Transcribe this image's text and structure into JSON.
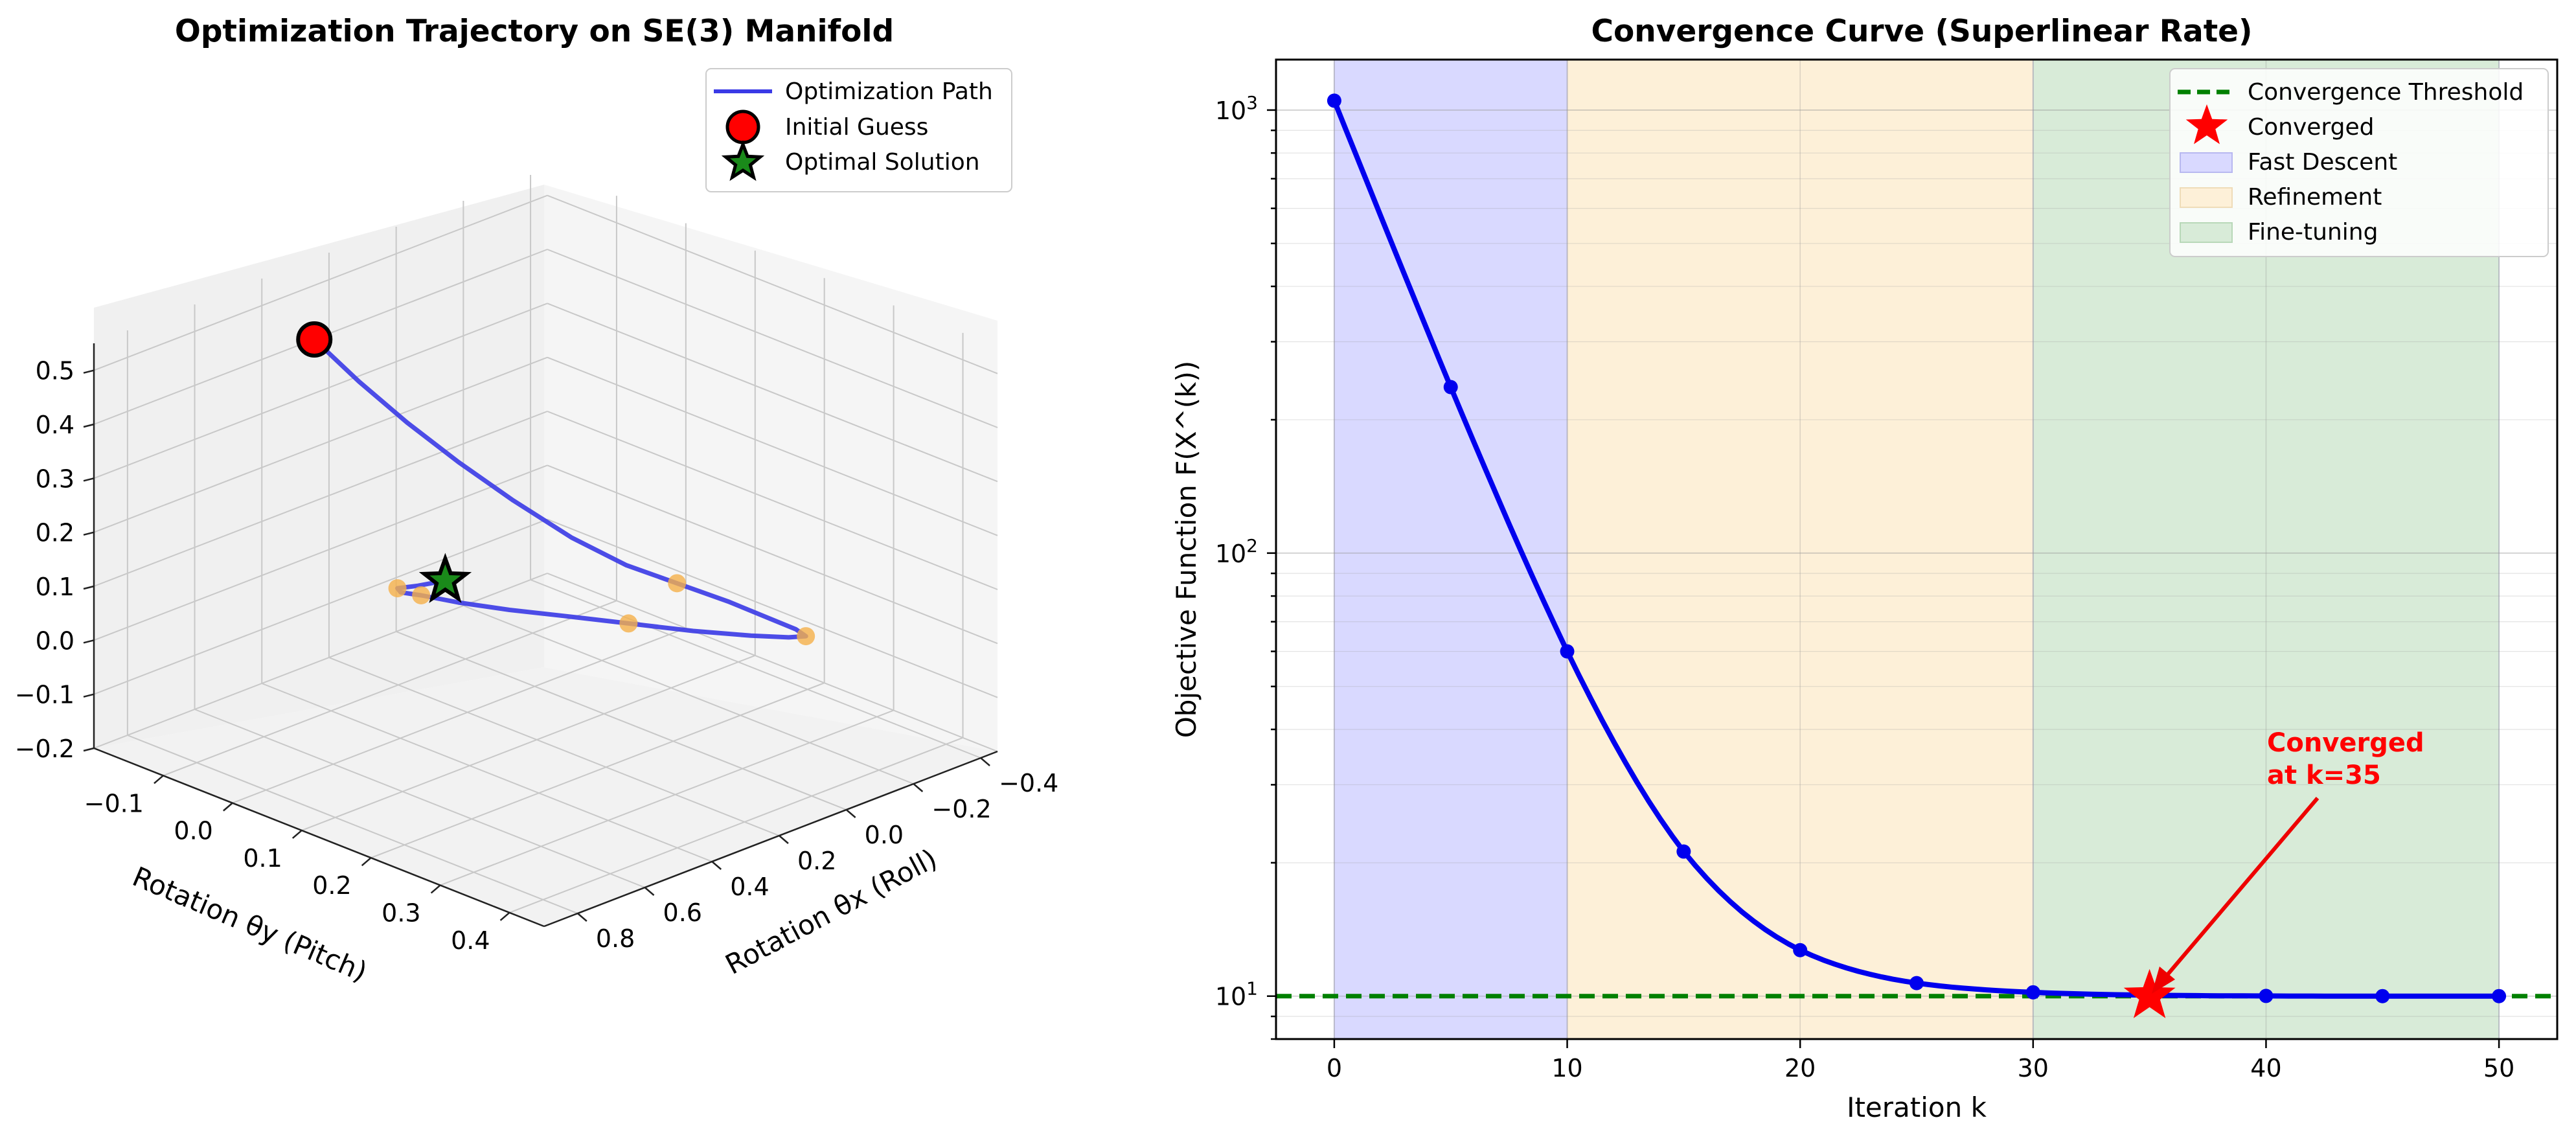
{
  "chart_data": [
    {
      "type": "line3d",
      "title": "Optimization Trajectory on SE(3) Manifold",
      "xlabel": "Rotation θx (Roll)",
      "ylabel": "Rotation θy (Pitch)",
      "zlabel": "",
      "xlim": [
        -0.45,
        0.9
      ],
      "ylim": [
        -0.2,
        0.45
      ],
      "zlim": [
        -0.2,
        0.55
      ],
      "x_ticks": [
        "0.8",
        "0.6",
        "0.4",
        "0.2",
        "0.0",
        "−0.2",
        "−0.4"
      ],
      "y_ticks": [
        "−0.1",
        "0.0",
        "0.1",
        "0.2",
        "0.3",
        "0.4"
      ],
      "z_ticks": [
        "−0.2",
        "−0.1",
        "0.0",
        "0.1",
        "0.2",
        "0.3",
        "0.4",
        "0.5"
      ],
      "grid": true,
      "legend": {
        "position": "top-right",
        "entries": [
          "Optimization Path",
          "Initial Guess",
          "Optimal Solution"
        ]
      },
      "colors": {
        "path": "#3a3ae6",
        "initial": "#ff0000",
        "optimal": "#1a8a1a",
        "samples": "#f5b04a"
      },
      "series": [
        {
          "name": "Optimization Path",
          "x": [
            0.45,
            0.42,
            0.38,
            0.33,
            0.27,
            0.2,
            0.12,
            0.03,
            -0.06,
            -0.14,
            -0.2,
            -0.23,
            -0.22,
            -0.17,
            -0.08,
            0.03,
            0.14,
            0.24,
            0.33,
            0.4,
            0.44,
            0.45,
            0.43,
            0.39
          ],
          "y": [
            -0.1,
            -0.05,
            0.0,
            0.05,
            0.1,
            0.15,
            0.19,
            0.22,
            0.25,
            0.27,
            0.28,
            0.28,
            0.26,
            0.23,
            0.19,
            0.15,
            0.11,
            0.08,
            0.05,
            0.03,
            0.02,
            0.02,
            0.04,
            0.06
          ],
          "z": [
            0.5,
            0.44,
            0.38,
            0.32,
            0.26,
            0.2,
            0.15,
            0.11,
            0.07,
            0.03,
            0.0,
            -0.02,
            -0.03,
            -0.03,
            -0.02,
            0.0,
            0.02,
            0.04,
            0.06,
            0.08,
            0.09,
            0.1,
            0.11,
            0.12
          ]
        }
      ],
      "markers": {
        "initial_guess": {
          "x": 0.45,
          "y": -0.1,
          "z": 0.5
        },
        "optimal_solution": {
          "x": 0.39,
          "y": 0.06,
          "z": 0.12
        },
        "samples": [
          {
            "x": 0.03,
            "y": 0.22,
            "z": 0.11
          },
          {
            "x": -0.23,
            "y": 0.28,
            "z": -0.02
          },
          {
            "x": 0.03,
            "y": 0.15,
            "z": 0.0
          },
          {
            "x": 0.4,
            "y": 0.03,
            "z": 0.08
          },
          {
            "x": 0.45,
            "y": 0.02,
            "z": 0.1
          }
        ]
      }
    },
    {
      "type": "line",
      "title": "Convergence Curve (Superlinear Rate)",
      "xlabel": "Iteration k",
      "ylabel": "Objective Function F(X^(k))",
      "xlim": [
        -2.5,
        52.5
      ],
      "ylim": [
        8.0,
        1300
      ],
      "yscale": "log",
      "x_ticks": [
        0,
        10,
        20,
        30,
        40,
        50
      ],
      "y_ticks": [
        {
          "value": 10,
          "base": "10",
          "exp": "1"
        },
        {
          "value": 100,
          "base": "10",
          "exp": "2"
        },
        {
          "value": 1000,
          "base": "10",
          "exp": "3"
        }
      ],
      "grid": true,
      "legend": {
        "position": "top-right",
        "entries": [
          "Convergence Threshold",
          "Converged",
          "Fast Descent",
          "Refinement",
          "Fine-tuning"
        ]
      },
      "colors": {
        "curve": "#0000ee",
        "threshold": "#008000",
        "converged": "#ff0000",
        "fast": "#d9d9ff",
        "refine": "#fdf0d8",
        "fine": "#d8ebd8"
      },
      "regions": [
        {
          "name": "Fast Descent",
          "x0": 0,
          "x1": 10
        },
        {
          "name": "Refinement",
          "x0": 10,
          "x1": 30
        },
        {
          "name": "Fine-tuning",
          "x0": 30,
          "x1": 50
        }
      ],
      "threshold": {
        "name": "Convergence Threshold",
        "y": 10
      },
      "series": [
        {
          "name": "Objective",
          "x": [
            0,
            5,
            10,
            15,
            20,
            25,
            30,
            35,
            40,
            45,
            50
          ],
          "y": [
            1050,
            237,
            60,
            21.2,
            12.7,
            10.7,
            10.2,
            10.05,
            10.01,
            10.0,
            10.0
          ]
        }
      ],
      "converged_point": {
        "name": "Converged",
        "x": 35,
        "y": 10
      },
      "annotation": {
        "line1": "Converged",
        "line2": "at k=35",
        "x": 40,
        "y": 33
      }
    }
  ]
}
